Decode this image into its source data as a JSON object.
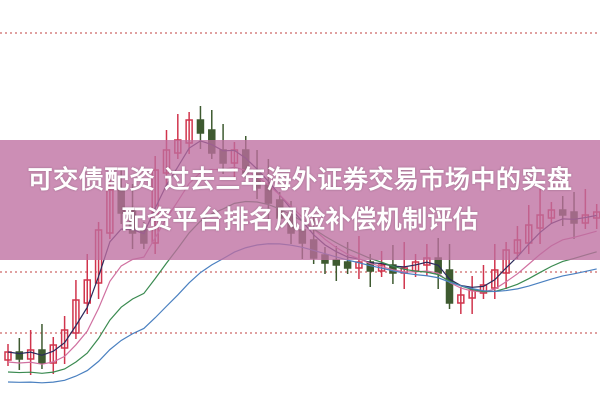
{
  "headline": {
    "line1": "可交债配资 过去三年海外证券交易市场中的实盘",
    "line2": "配资平台排名风险补偿机制评估"
  },
  "colors": {
    "up": "#d0344c",
    "down": "#3e5a30",
    "banner": "#c88ab0",
    "ma_dark": "#2a2a5a",
    "ma_pink": "#d070a0",
    "ma_green": "#3a8a50",
    "ma_blue": "#4a80c0"
  }
}
